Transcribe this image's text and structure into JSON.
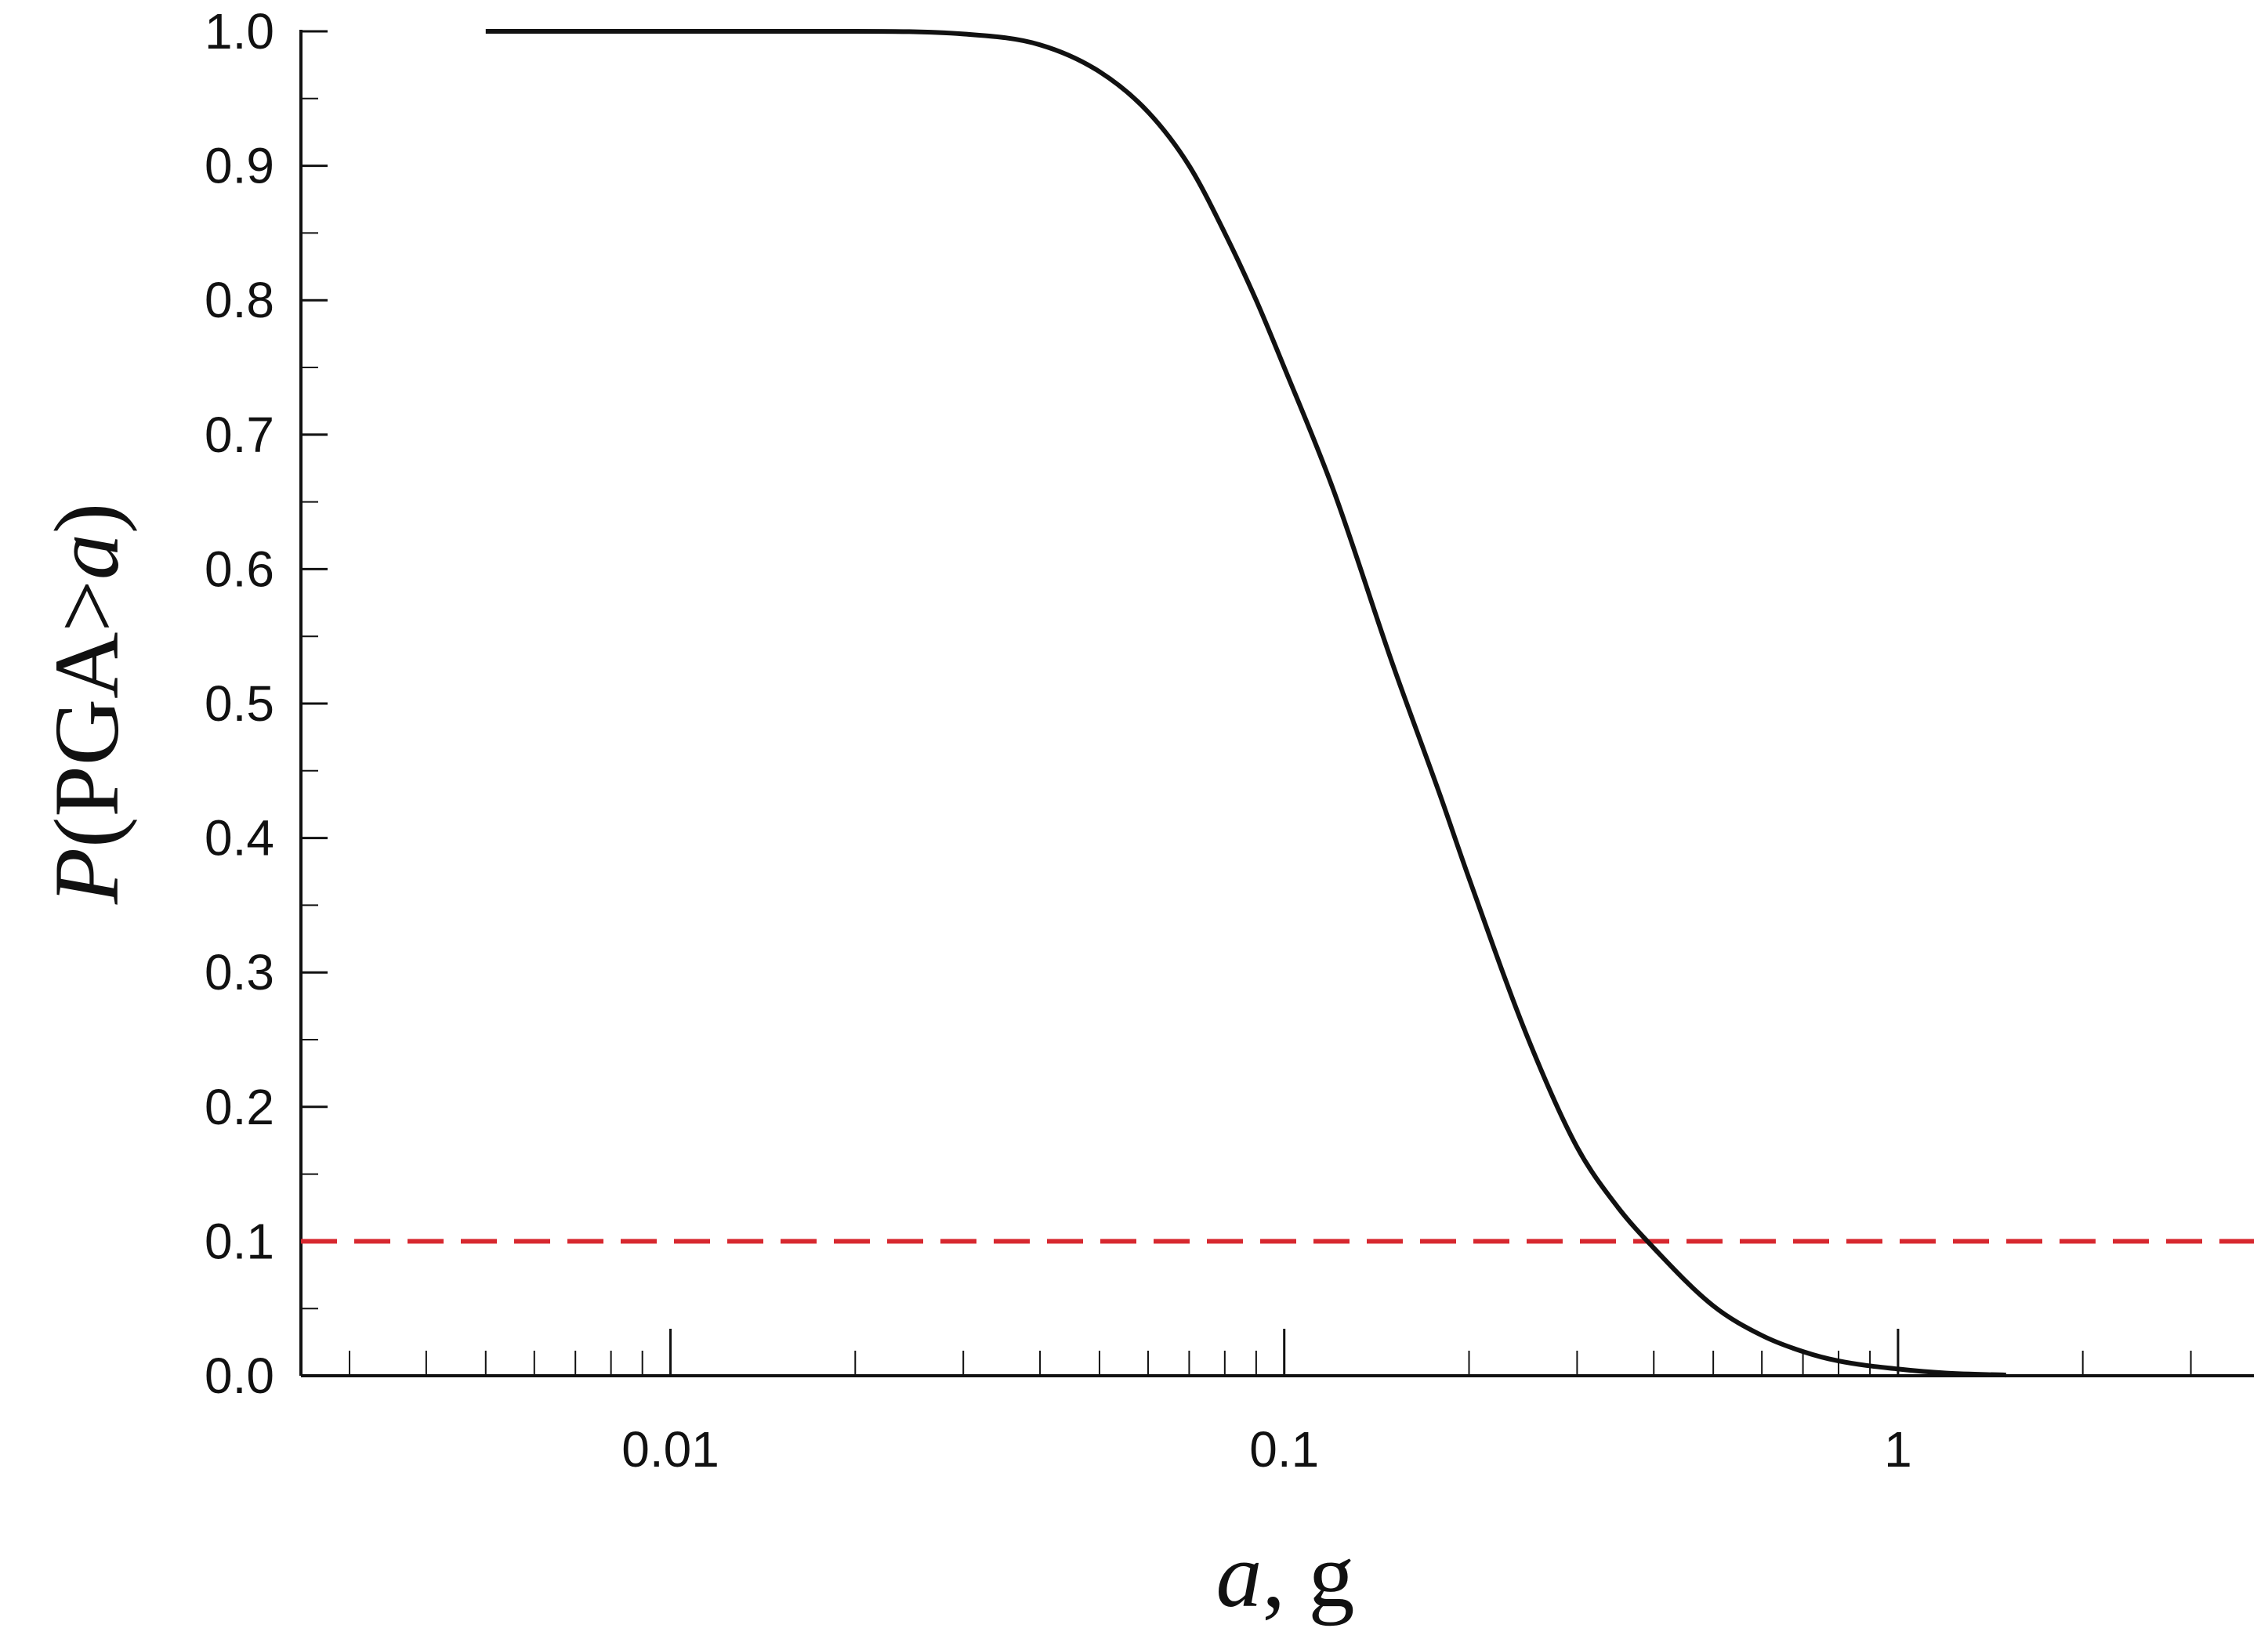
{
  "chart_data": {
    "type": "line",
    "title": "",
    "xlabel": {
      "var": "a",
      "unit": ", g"
    },
    "ylabel": {
      "prefix": "P",
      "mid": "(PGA>",
      "var": "a",
      "suffix": ")"
    },
    "x_scale": "log",
    "xlim": [
      0.0025,
      3.8
    ],
    "ylim": [
      0,
      1.0
    ],
    "x_ticks": [
      {
        "value": 0.01,
        "label": "0.01"
      },
      {
        "value": 0.1,
        "label": "0.1"
      },
      {
        "value": 1,
        "label": "1"
      }
    ],
    "y_ticks": [
      {
        "value": 0.0,
        "label": "0.0"
      },
      {
        "value": 0.1,
        "label": "0.1"
      },
      {
        "value": 0.2,
        "label": "0.2"
      },
      {
        "value": 0.3,
        "label": "0.3"
      },
      {
        "value": 0.4,
        "label": "0.4"
      },
      {
        "value": 0.5,
        "label": "0.5"
      },
      {
        "value": 0.6,
        "label": "0.6"
      },
      {
        "value": 0.7,
        "label": "0.7"
      },
      {
        "value": 0.8,
        "label": "0.8"
      },
      {
        "value": 0.9,
        "label": "0.9"
      },
      {
        "value": 1.0,
        "label": "1.0"
      }
    ],
    "grid": false,
    "legend": "none",
    "series": [
      {
        "color": "#111111",
        "style": "solid",
        "x": [
          0.005,
          0.01,
          0.02,
          0.03,
          0.04,
          0.05,
          0.06,
          0.07,
          0.08,
          0.09,
          0.1,
          0.12,
          0.15,
          0.18,
          0.2,
          0.25,
          0.3,
          0.35,
          0.4,
          0.5,
          0.6,
          0.7,
          0.8,
          1.0,
          1.2,
          1.5
        ],
        "y": [
          1.0,
          1.0,
          1.0,
          0.998,
          0.99,
          0.97,
          0.94,
          0.9,
          0.85,
          0.8,
          0.75,
          0.66,
          0.53,
          0.43,
          0.37,
          0.25,
          0.17,
          0.125,
          0.095,
          0.052,
          0.03,
          0.018,
          0.011,
          0.005,
          0.002,
          0.0005
        ]
      }
    ],
    "reference_lines": [
      {
        "orientation": "horizontal",
        "y": 0.1,
        "color": "#d7282f",
        "style": "dashed"
      }
    ]
  }
}
